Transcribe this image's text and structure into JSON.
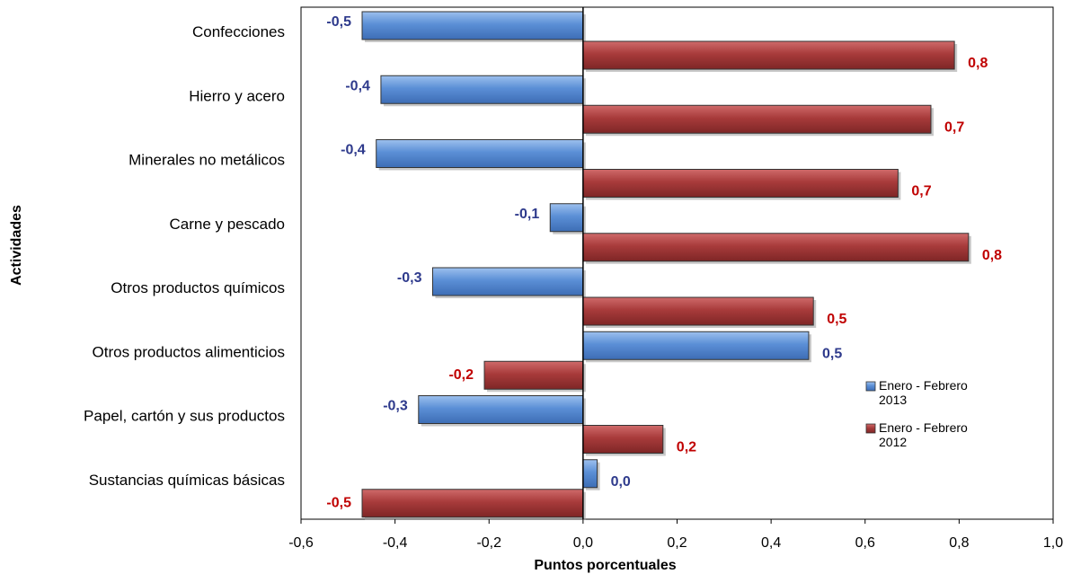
{
  "chart_data": {
    "type": "bar",
    "orientation": "horizontal",
    "categories": [
      "Confecciones",
      "Hierro y acero",
      "Minerales no metálicos",
      "Carne y pescado",
      "Otros productos químicos",
      "Otros productos alimenticios",
      "Papel, cartón y sus productos",
      "Sustancias químicas básicas"
    ],
    "series": [
      {
        "name": "Enero - Febrero 2013",
        "legend_lines": [
          "Enero - Febrero",
          "2013"
        ],
        "color": "#4a7fc8",
        "label_color": "#2e3a8c",
        "values": [
          -0.47,
          -0.43,
          -0.44,
          -0.07,
          -0.32,
          0.48,
          -0.35,
          0.03
        ],
        "labels": [
          "-0,5",
          "-0,4",
          "-0,4",
          "-0,1",
          "-0,3",
          "0,5",
          "-0,3",
          "0,0"
        ]
      },
      {
        "name": "Enero - Febrero 2012",
        "legend_lines": [
          "Enero - Febrero",
          "2012"
        ],
        "color": "#a33a3a",
        "label_color": "#c00000",
        "values": [
          0.79,
          0.74,
          0.67,
          0.82,
          0.49,
          -0.21,
          0.17,
          -0.47
        ],
        "labels": [
          "0,8",
          "0,7",
          "0,7",
          "0,8",
          "0,5",
          "-0,2",
          "0,2",
          "-0,5"
        ]
      }
    ],
    "xlim": [
      -0.6,
      1.0
    ],
    "xticks": [
      -0.6,
      -0.4,
      -0.2,
      0.0,
      0.2,
      0.4,
      0.6,
      0.8,
      1.0
    ],
    "xtick_labels": [
      "-0,6",
      "-0,4",
      "-0,2",
      "0,0",
      "0,2",
      "0,4",
      "0,6",
      "0,8",
      "1,0"
    ],
    "xlabel": "Puntos porcentuales",
    "ylabel": "Actividades",
    "grid": false,
    "legend_position": "bottom-right"
  }
}
